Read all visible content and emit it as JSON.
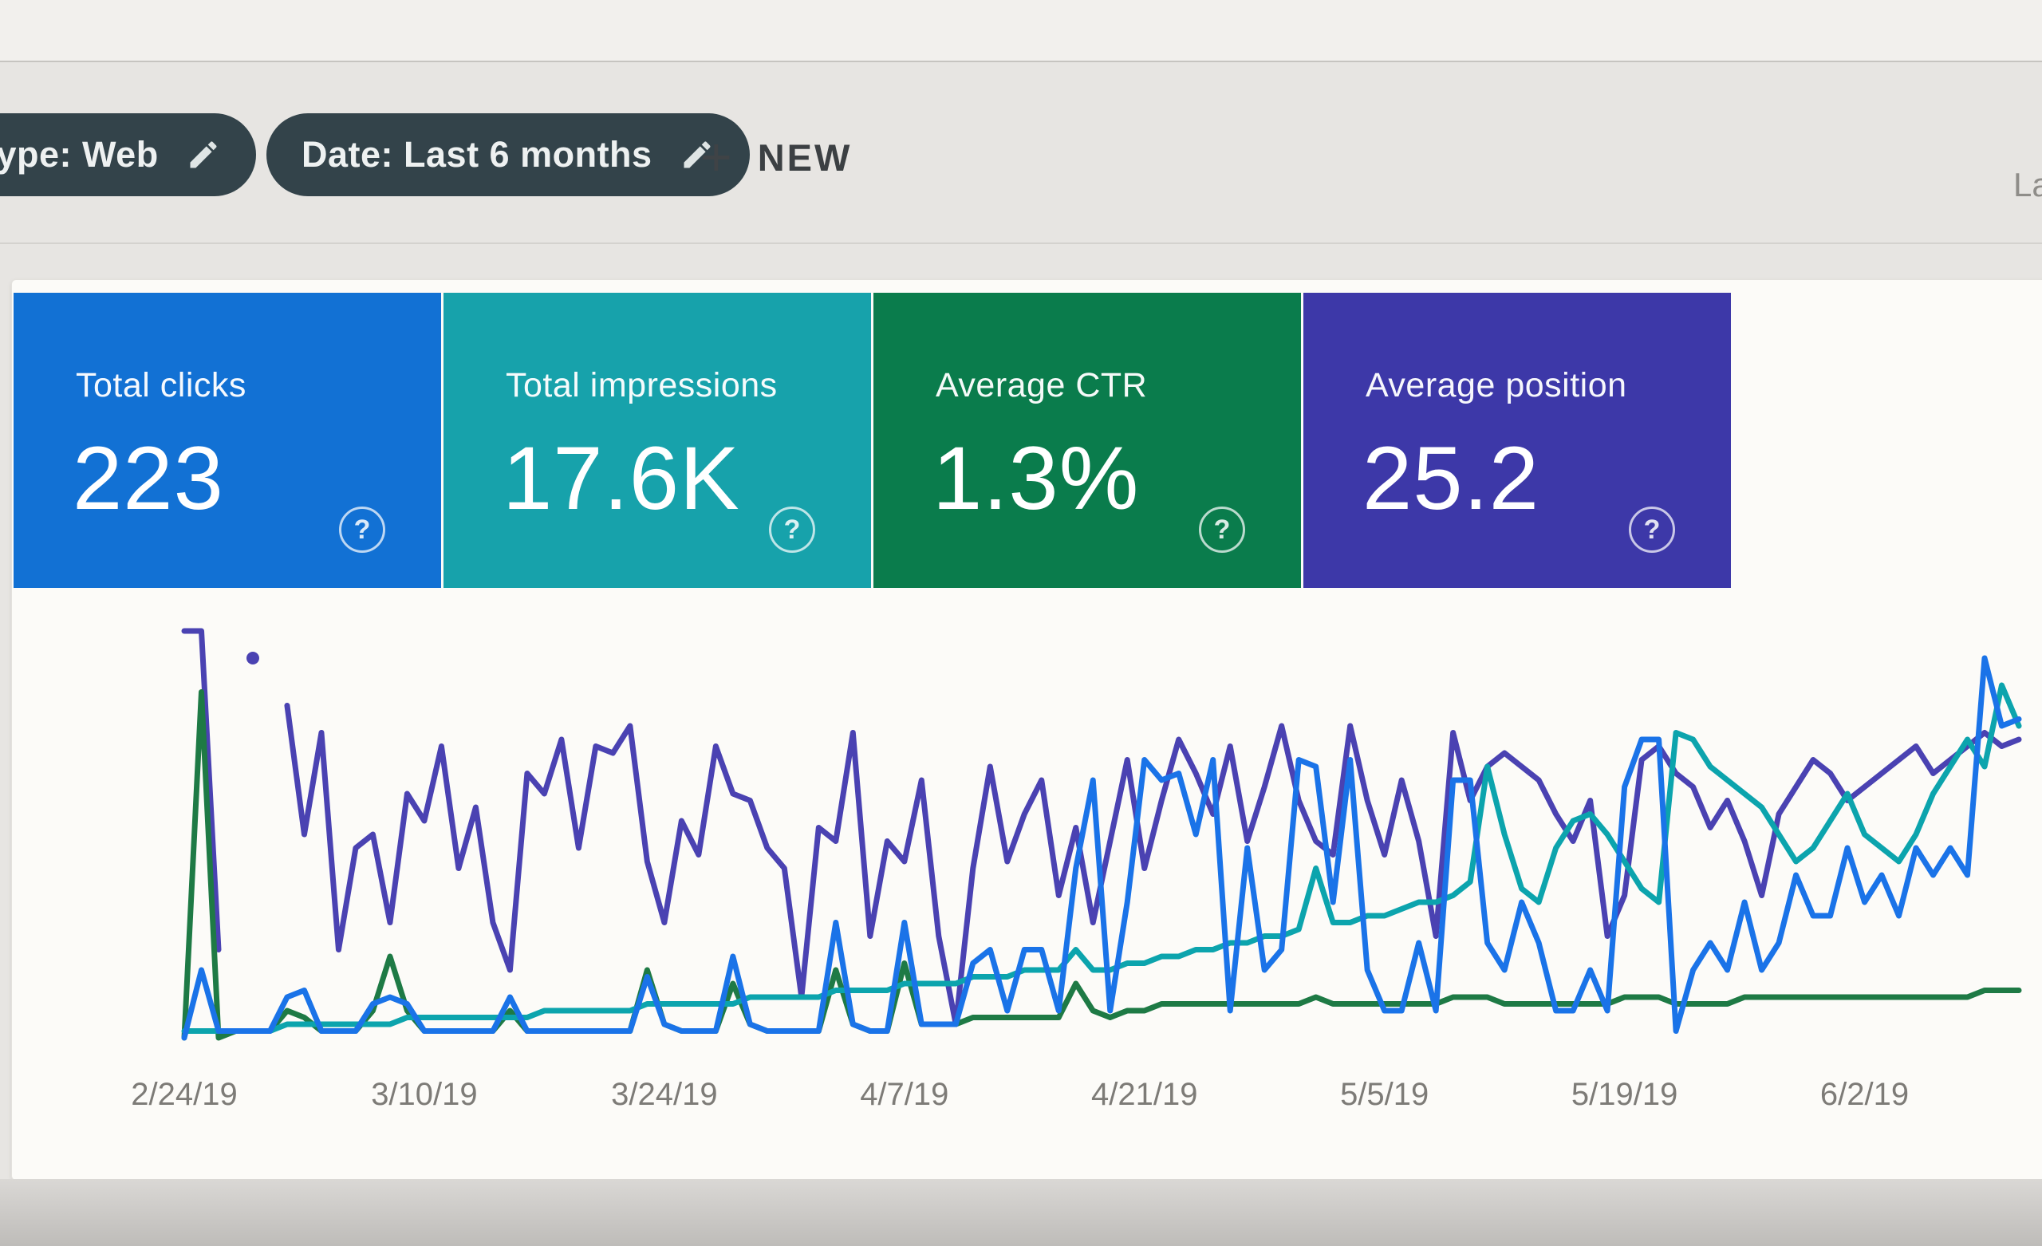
{
  "header": {
    "chips": [
      {
        "label": "type: Web"
      },
      {
        "label": "Date: Last 6 months"
      }
    ],
    "new_button": {
      "plus": "+",
      "label": "NEW"
    },
    "top_right_partial": "La"
  },
  "cards": [
    {
      "label": "Total clicks",
      "value": "223",
      "color": "#1271d4",
      "help": "?"
    },
    {
      "label": "Total impressions",
      "value": "17.6K",
      "color": "#17a2ab",
      "help": "?"
    },
    {
      "label": "Average CTR",
      "value": "1.3%",
      "color": "#0a7c4c",
      "help": "?"
    },
    {
      "label": "Average position",
      "value": "25.2",
      "color": "#3d38a8",
      "help": "?"
    }
  ],
  "chart_data": {
    "type": "line",
    "x_unit": "day",
    "x_tick_labels": [
      "2/24/19",
      "3/10/19",
      "3/24/19",
      "4/7/19",
      "4/21/19",
      "5/5/19",
      "5/19/19",
      "6/2/19"
    ],
    "tick_every_days": 14,
    "ylim": [
      0,
      100
    ],
    "grid": false,
    "legend_position": "none",
    "axis_label_color": "#7d7b77",
    "series": [
      {
        "name": "Average position",
        "color": "#4a42b2",
        "values": [
          60,
          60,
          13,
          null,
          56,
          null,
          49,
          30,
          45,
          13,
          28,
          30,
          17,
          36,
          32,
          43,
          25,
          34,
          17,
          10,
          39,
          36,
          44,
          28,
          43,
          42,
          46,
          26,
          17,
          32,
          27,
          43,
          36,
          35,
          28,
          25,
          6,
          31,
          29,
          45,
          15,
          29,
          26,
          38,
          15,
          2,
          25,
          40,
          26,
          33,
          38,
          21,
          31,
          17,
          29,
          41,
          25,
          35,
          44,
          39,
          33,
          43,
          29,
          37,
          46,
          35,
          29,
          27,
          46,
          35,
          27,
          38,
          29,
          15,
          45,
          35,
          40,
          42,
          40,
          38,
          33,
          29,
          35,
          15,
          21,
          41,
          43,
          39,
          37,
          31,
          35,
          29,
          21,
          33,
          37,
          41,
          39,
          35,
          37,
          39,
          41,
          43,
          39,
          41,
          43,
          45,
          43,
          44
        ]
      },
      {
        "name": "Average CTR",
        "color": "#1e7a45",
        "values": [
          0,
          51,
          0,
          1,
          1,
          1,
          4,
          3,
          1,
          1,
          1,
          4,
          12,
          4,
          1,
          1,
          1,
          1,
          1,
          4,
          1,
          1,
          1,
          1,
          1,
          1,
          1,
          10,
          2,
          1,
          1,
          1,
          8,
          2,
          1,
          1,
          1,
          1,
          10,
          2,
          1,
          1,
          11,
          2,
          2,
          2,
          3,
          3,
          3,
          3,
          3,
          3,
          8,
          4,
          3,
          4,
          4,
          5,
          5,
          5,
          5,
          5,
          5,
          5,
          5,
          5,
          6,
          5,
          5,
          5,
          5,
          5,
          5,
          5,
          6,
          6,
          6,
          5,
          5,
          5,
          5,
          5,
          5,
          5,
          6,
          6,
          6,
          5,
          5,
          5,
          5,
          6,
          6,
          6,
          6,
          6,
          6,
          6,
          6,
          6,
          6,
          6,
          6,
          6,
          6,
          7,
          7,
          7
        ]
      },
      {
        "name": "Total impressions",
        "color": "#0ca4ad",
        "values": [
          1,
          1,
          1,
          1,
          1,
          1,
          2,
          2,
          2,
          2,
          2,
          2,
          2,
          3,
          3,
          3,
          3,
          3,
          3,
          3,
          3,
          4,
          4,
          4,
          4,
          4,
          4,
          5,
          5,
          5,
          5,
          5,
          5,
          6,
          6,
          6,
          6,
          6,
          7,
          7,
          7,
          7,
          8,
          8,
          8,
          8,
          9,
          9,
          9,
          10,
          10,
          10,
          13,
          10,
          10,
          11,
          11,
          12,
          12,
          13,
          13,
          14,
          14,
          15,
          15,
          16,
          25,
          17,
          17,
          18,
          18,
          19,
          20,
          20,
          21,
          23,
          40,
          30,
          22,
          20,
          28,
          32,
          33,
          30,
          26,
          22,
          20,
          45,
          44,
          40,
          38,
          36,
          34,
          30,
          26,
          28,
          32,
          36,
          30,
          28,
          26,
          30,
          36,
          40,
          44,
          40,
          52,
          46
        ]
      },
      {
        "name": "Total clicks",
        "color": "#1a73e8",
        "values": [
          0,
          10,
          1,
          1,
          1,
          1,
          6,
          7,
          1,
          1,
          1,
          5,
          6,
          5,
          1,
          1,
          1,
          1,
          1,
          6,
          1,
          1,
          1,
          1,
          1,
          1,
          1,
          9,
          2,
          1,
          1,
          1,
          12,
          2,
          1,
          1,
          1,
          1,
          17,
          2,
          1,
          1,
          17,
          2,
          2,
          2,
          11,
          13,
          4,
          13,
          13,
          4,
          25,
          38,
          4,
          20,
          41,
          38,
          39,
          30,
          41,
          4,
          28,
          10,
          13,
          41,
          40,
          20,
          41,
          10,
          4,
          4,
          14,
          4,
          38,
          38,
          14,
          10,
          20,
          14,
          4,
          4,
          10,
          4,
          37,
          44,
          44,
          1,
          10,
          14,
          10,
          20,
          10,
          14,
          24,
          18,
          18,
          28,
          20,
          24,
          18,
          28,
          24,
          28,
          24,
          56,
          46,
          47
        ]
      }
    ]
  }
}
